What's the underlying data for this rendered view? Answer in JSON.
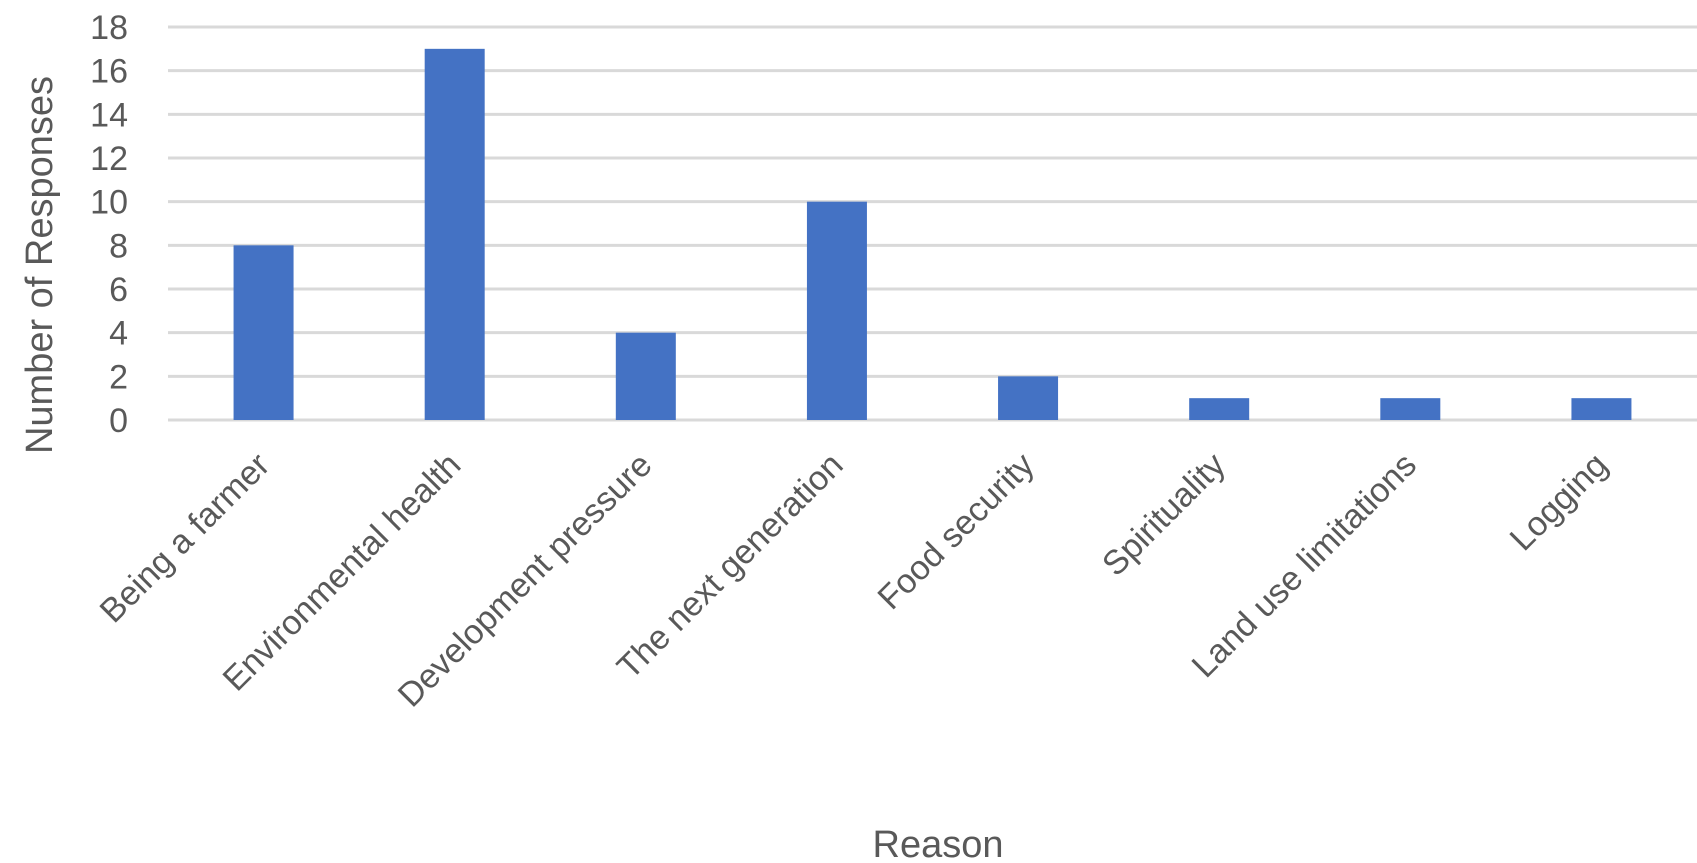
{
  "chart_data": {
    "type": "bar",
    "title": "",
    "xlabel": "Reason",
    "ylabel": "Number of Responses",
    "categories": [
      "Being a farmer",
      "Environmental health",
      "Development pressure",
      "The next generation",
      "Food security",
      "Spirituality",
      "Land use limitations",
      "Logging"
    ],
    "values": [
      8,
      17,
      4,
      10,
      2,
      1,
      1,
      1
    ],
    "ylim": [
      0,
      18
    ],
    "yticks": [
      0,
      2,
      4,
      6,
      8,
      10,
      12,
      14,
      16,
      18
    ],
    "grid": true,
    "legend": "none",
    "colors": {
      "bar": "#4472C4",
      "grid": "#D9D9D9",
      "text": "#595959"
    }
  }
}
